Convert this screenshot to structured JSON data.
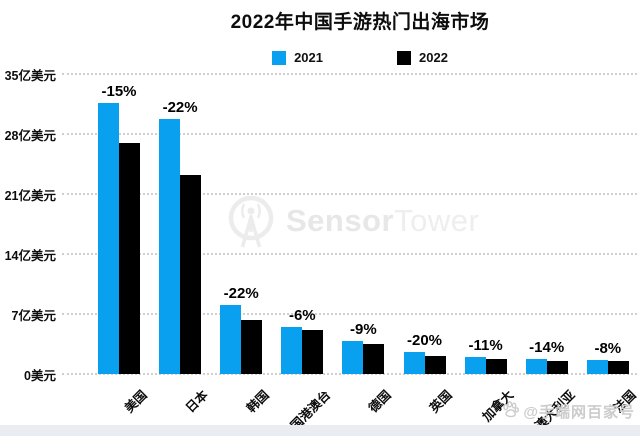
{
  "watermark": {
    "brand_bold": "Sensor",
    "brand_light": "Tower"
  },
  "credit": {
    "text": "@手端网百家号",
    "icon": "baidu-paw-icon"
  },
  "colors": {
    "accent_blue": "#0aa0f0",
    "black": "#000000",
    "grid": "#cfcfcf",
    "watermark_gray": "#e9e9e9",
    "footer_strip": "#e9edf2"
  },
  "chart_data": {
    "type": "bar",
    "title": "2022年中国手游热门出海市场",
    "unit": "亿美元",
    "categories": [
      "美国",
      "日本",
      "韩国",
      "中国港澳台",
      "德国",
      "英国",
      "加拿大",
      "澳大利亚",
      "法国"
    ],
    "series": [
      {
        "name": "2021",
        "color": "#0aa0f0",
        "values": [
          31.6,
          29.7,
          8.1,
          5.5,
          3.85,
          2.6,
          2.0,
          1.8,
          1.68
        ]
      },
      {
        "name": "2022",
        "color": "#000000",
        "values": [
          26.9,
          23.2,
          6.3,
          5.15,
          3.5,
          2.1,
          1.78,
          1.55,
          1.55
        ]
      }
    ],
    "pct_change": [
      "-15%",
      "-22%",
      "-22%",
      "-6%",
      "-9%",
      "-20%",
      "-11%",
      "-14%",
      "-8%"
    ],
    "y_ticks": [
      "35亿美元",
      "28亿美元",
      "21亿美元",
      "14亿美元",
      "7亿美元",
      "0美元"
    ],
    "ymax": 35,
    "grid": "dotted-horizontal",
    "legend_position": "top"
  }
}
